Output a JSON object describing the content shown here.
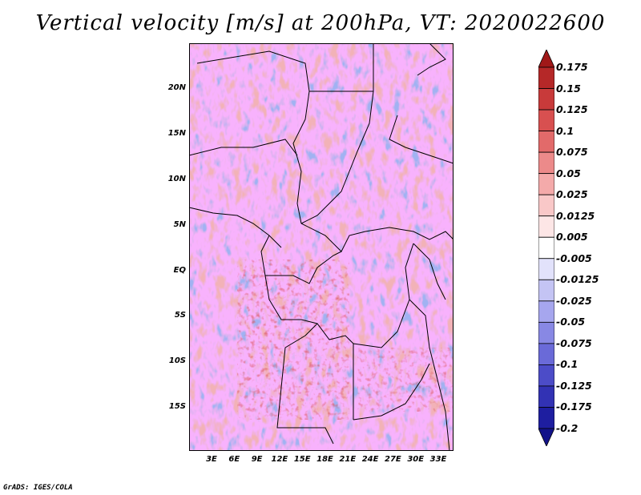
{
  "title": "Vertical velocity [m/s] at 200hPa, VT: 2020022600",
  "footer": "GrADS: IGES/COLA",
  "map": {
    "lat_ticks": [
      "20N",
      "15N",
      "10N",
      "5N",
      "EQ",
      "5S",
      "10S",
      "15S"
    ],
    "lon_ticks": [
      "3E",
      "6E",
      "9E",
      "12E",
      "15E",
      "18E",
      "21E",
      "24E",
      "27E",
      "30E",
      "33E"
    ]
  },
  "colorbar": {
    "labels": [
      "0.175",
      "0.15",
      "0.125",
      "0.1",
      "0.075",
      "0.05",
      "0.025",
      "0.0125",
      "0.005",
      "-0.005",
      "-0.0125",
      "-0.025",
      "-0.05",
      "-0.075",
      "-0.1",
      "-0.125",
      "-0.175",
      "-0.2"
    ],
    "colors": [
      "#a01818",
      "#b52828",
      "#c83a3a",
      "#d85050",
      "#e26a6a",
      "#ec8a8a",
      "#f4aaaa",
      "#f9c8c8",
      "#fde6e6",
      "#ffffff",
      "#e2e2fb",
      "#c4c4f4",
      "#a6a6ee",
      "#8888e4",
      "#6a6ad8",
      "#4c4cc8",
      "#3232b4",
      "#1e1ea0",
      "#12128a"
    ]
  }
}
